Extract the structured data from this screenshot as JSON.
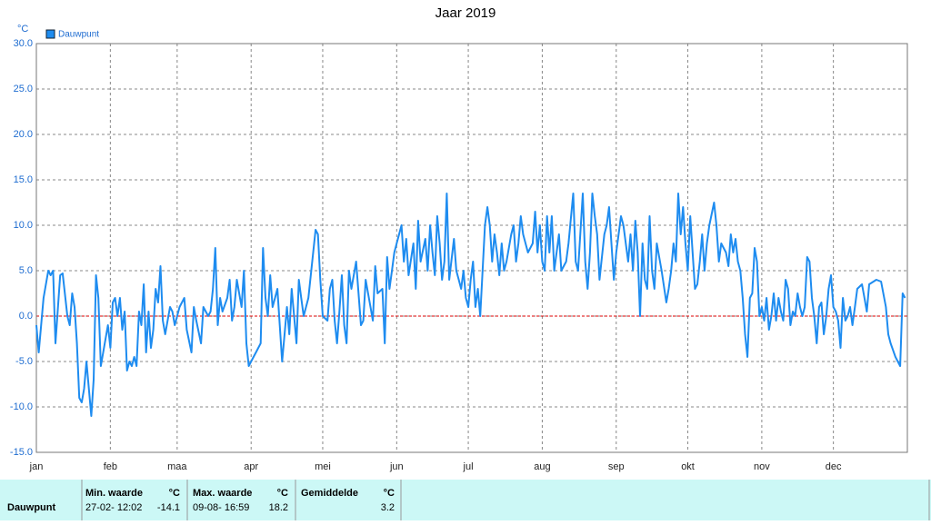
{
  "chart_data": {
    "type": "line",
    "title": "Jaar 2019",
    "y_label": "°C",
    "x": [
      0,
      1,
      3,
      5,
      6,
      7,
      8,
      10,
      11,
      13,
      14,
      15,
      16,
      17,
      18,
      19,
      20,
      21,
      23,
      24,
      25,
      26,
      27,
      28,
      30,
      31,
      32,
      33,
      34,
      35,
      36,
      37,
      38,
      39,
      40,
      41,
      42,
      43,
      44,
      45,
      46,
      47,
      48,
      49,
      50,
      51,
      52,
      53,
      54,
      56,
      57,
      58,
      60,
      62,
      63,
      65,
      66,
      67,
      69,
      70,
      72,
      73,
      74,
      75,
      76,
      77,
      78,
      80,
      81,
      82,
      83,
      84,
      86,
      87,
      88,
      89,
      90,
      92,
      94,
      95,
      96,
      97,
      98,
      99,
      100,
      101,
      102,
      103,
      104,
      105,
      106,
      107,
      108,
      109,
      110,
      111,
      112,
      114,
      117,
      118,
      119,
      120,
      122,
      123,
      124,
      125,
      126,
      127,
      128,
      129,
      130,
      131,
      132,
      134,
      136,
      137,
      138,
      140,
      141,
      142,
      143,
      145,
      146,
      147,
      148,
      149,
      150,
      151,
      153,
      154,
      155,
      156,
      158,
      159,
      160,
      161,
      163,
      164,
      165,
      166,
      167,
      168,
      169,
      170,
      171,
      172,
      173,
      175,
      176,
      177,
      178,
      179,
      180,
      181,
      182,
      183,
      184,
      185,
      186,
      187,
      188,
      189,
      190,
      191,
      192,
      193,
      194,
      195,
      196,
      197,
      199,
      200,
      201,
      202,
      203,
      204,
      206,
      208,
      209,
      210,
      211,
      212,
      213,
      214,
      215,
      216,
      217,
      219,
      220,
      222,
      223,
      225,
      226,
      227,
      229,
      230,
      231,
      232,
      233,
      234,
      235,
      236,
      238,
      239,
      240,
      241,
      242,
      243,
      245,
      246,
      247,
      248,
      249,
      250,
      251,
      252,
      253,
      254,
      255,
      256,
      257,
      258,
      259,
      260,
      262,
      264,
      265,
      266,
      267,
      268,
      269,
      270,
      271,
      272,
      273,
      274,
      275,
      276,
      277,
      278,
      279,
      280,
      281,
      282,
      284,
      285,
      286,
      287,
      289,
      290,
      291,
      292,
      293,
      294,
      295,
      296,
      297,
      298,
      299,
      300,
      301,
      302,
      303,
      304,
      305,
      306,
      307,
      308,
      309,
      310,
      311,
      312,
      313,
      314,
      315,
      316,
      317,
      318,
      319,
      320,
      321,
      322,
      323,
      324,
      325,
      326,
      327,
      328,
      329,
      330,
      331,
      332,
      333,
      334,
      335,
      336,
      337,
      338,
      339,
      340,
      341,
      342,
      343,
      344,
      346,
      347,
      348,
      349,
      352,
      354,
      356,
      357,
      358,
      360,
      362,
      363,
      364
    ],
    "series": [
      {
        "name": "Dauwpunt",
        "color": "#1e8cf0",
        "values": [
          -1,
          -4,
          2,
          5,
          4.5,
          5,
          -3,
          4.5,
          4.7,
          0,
          -1,
          2.5,
          1,
          -3,
          -9,
          -9.5,
          -8,
          -5,
          -11,
          -7,
          4.5,
          2,
          -5.5,
          -4,
          -1,
          -3.5,
          1.5,
          2,
          0,
          2,
          -1.5,
          0.5,
          -6,
          -5,
          -5.5,
          -4.5,
          -5.5,
          0.5,
          -1,
          3.5,
          -4,
          0.5,
          -3.5,
          -1.5,
          3,
          1.5,
          5.5,
          -0.5,
          -2,
          1,
          0.5,
          -1,
          1,
          2,
          -1.5,
          -4,
          1,
          -0.5,
          -3,
          1,
          0,
          0.5,
          3,
          7.5,
          -1,
          2,
          0.5,
          2,
          4,
          -0.5,
          1,
          4,
          1,
          5,
          -3,
          -5.5,
          -5,
          -4,
          -3,
          7.5,
          2,
          0,
          4.5,
          1,
          2,
          3,
          -1,
          -5,
          -2,
          1,
          -2,
          3,
          0,
          -3,
          4,
          2,
          0,
          2,
          9.5,
          9,
          4,
          0,
          -0.5,
          3,
          4,
          -0.5,
          -3,
          0.5,
          4.5,
          -1,
          -3,
          5,
          3,
          6,
          -1,
          -0.5,
          4,
          1,
          -0.5,
          5.5,
          2.5,
          3,
          -3,
          6.5,
          3,
          5,
          7,
          8,
          10,
          6,
          8.5,
          4.5,
          8,
          3,
          10.5,
          6,
          8.5,
          5,
          10,
          7,
          4.5,
          11,
          8,
          4,
          6,
          13.5,
          4,
          8.5,
          5,
          4,
          3,
          5,
          2,
          1,
          4,
          6,
          1,
          3,
          0,
          5,
          10,
          12,
          10,
          6,
          9,
          7,
          4.5,
          8,
          5,
          6,
          9,
          10,
          6,
          8,
          11,
          9,
          7,
          8,
          11.5,
          7,
          10,
          6,
          5,
          11,
          7,
          11,
          5,
          9,
          5,
          6,
          8,
          13.5,
          6,
          5,
          13.5,
          6,
          3,
          7,
          13.5,
          11,
          9,
          4,
          9,
          10,
          12,
          8,
          4,
          7,
          11,
          10,
          8,
          6,
          9,
          5,
          10.5,
          7,
          0,
          8,
          4,
          3,
          11,
          5,
          3,
          8,
          5,
          1.5,
          3,
          5,
          8,
          6,
          13.5,
          9,
          12,
          8,
          5,
          11,
          7,
          3,
          3.5,
          6,
          9,
          5,
          8,
          10,
          12.5,
          10,
          6,
          8,
          7,
          5.5,
          9,
          7,
          8.5,
          6,
          5,
          2,
          -2,
          -4.5,
          2,
          2.5,
          7.5,
          6,
          0,
          1,
          -0.5,
          2,
          -1.5,
          0,
          2.5,
          -0.5,
          2,
          0.5,
          -0.5,
          4,
          3,
          -1,
          0.5,
          0,
          2.5,
          1,
          0,
          1,
          6.5,
          6,
          2,
          0,
          -3,
          1,
          1.5,
          -2,
          0,
          3,
          4.5,
          1,
          0.5,
          -0.5,
          -3.5,
          2,
          -0.5,
          0,
          1,
          -1,
          1,
          3,
          3.5,
          2,
          0.5,
          3.5,
          4,
          3.8,
          1,
          -2,
          -3,
          -4.5,
          -5.5,
          2.5,
          2
        ]
      }
    ],
    "xlim": [
      0,
      365
    ],
    "xticks": [
      {
        "value": 0,
        "label": "jan"
      },
      {
        "value": 31,
        "label": "feb"
      },
      {
        "value": 59,
        "label": "maa"
      },
      {
        "value": 90,
        "label": "apr"
      },
      {
        "value": 120,
        "label": "mei"
      },
      {
        "value": 151,
        "label": "jun"
      },
      {
        "value": 181,
        "label": "jul"
      },
      {
        "value": 212,
        "label": "aug"
      },
      {
        "value": 243,
        "label": "sep"
      },
      {
        "value": 273,
        "label": "okt"
      },
      {
        "value": 304,
        "label": "nov"
      },
      {
        "value": 334,
        "label": "dec"
      }
    ],
    "ylim": [
      -15,
      30
    ],
    "yticks": [
      {
        "value": -15,
        "label": "-15.0"
      },
      {
        "value": -10,
        "label": "-10.0"
      },
      {
        "value": -5,
        "label": "-5.0"
      },
      {
        "value": 0,
        "label": "0.0"
      },
      {
        "value": 5,
        "label": "5.0"
      },
      {
        "value": 10,
        "label": "10.0"
      },
      {
        "value": 15,
        "label": "15.0"
      },
      {
        "value": 20,
        "label": "20.0"
      },
      {
        "value": 25,
        "label": "25.0"
      },
      {
        "value": 30,
        "label": "30.0"
      }
    ],
    "grid": true,
    "reference_line": 0,
    "reference_color": "#dd0000"
  },
  "table": {
    "headers": [
      "Min. waarde",
      "°C",
      "Max. waarde",
      "°C",
      "Gemiddelde",
      "°C"
    ],
    "rows": [
      [
        "Dauwpunt",
        "27-02- 12:02",
        "-14.1",
        "09-08- 16:59",
        "18.2",
        "3.2"
      ]
    ]
  }
}
